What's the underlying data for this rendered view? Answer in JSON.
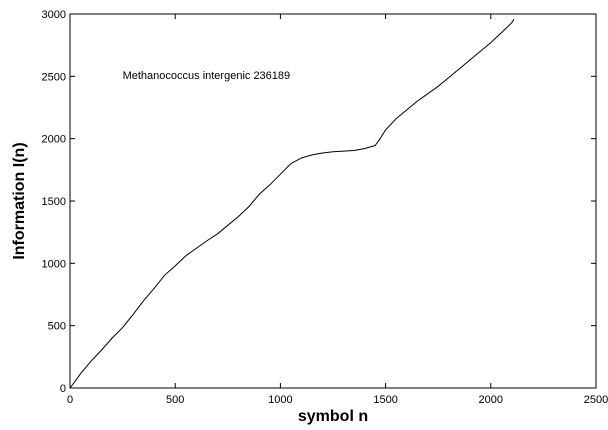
{
  "chart_data": {
    "type": "line",
    "xlabel": "symbol n",
    "ylabel": "Information I(n)",
    "xlim": [
      0,
      2500
    ],
    "ylim": [
      0,
      3000
    ],
    "xticks": [
      0,
      500,
      1000,
      1500,
      2000,
      2500
    ],
    "yticks": [
      0,
      500,
      1000,
      1500,
      2000,
      2500,
      3000
    ],
    "grid": false,
    "annotation": {
      "text": "Methanococcus intergenic 236189",
      "x": 250,
      "y": 2480
    },
    "series": [
      {
        "x": [
          0,
          25,
          50,
          100,
          150,
          200,
          250,
          300,
          350,
          400,
          450,
          500,
          550,
          600,
          650,
          700,
          750,
          800,
          850,
          900,
          950,
          1000,
          1050,
          1100,
          1150,
          1200,
          1250,
          1300,
          1350,
          1400,
          1450,
          1470,
          1500,
          1550,
          1600,
          1650,
          1700,
          1750,
          1800,
          1850,
          1900,
          1950,
          2000,
          2050,
          2100,
          2110
        ],
        "y": [
          0,
          55,
          115,
          215,
          305,
          400,
          485,
          590,
          700,
          800,
          905,
          980,
          1060,
          1120,
          1180,
          1235,
          1305,
          1375,
          1455,
          1555,
          1630,
          1715,
          1800,
          1845,
          1870,
          1885,
          1895,
          1900,
          1905,
          1920,
          1945,
          1990,
          2070,
          2160,
          2230,
          2300,
          2360,
          2420,
          2490,
          2560,
          2630,
          2700,
          2770,
          2850,
          2930,
          2960
        ]
      }
    ]
  }
}
